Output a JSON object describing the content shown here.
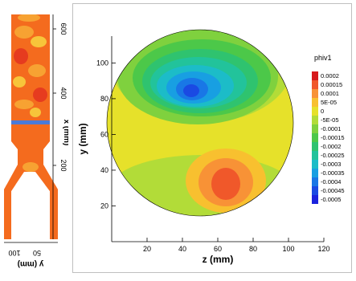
{
  "chart_data": [
    {
      "type": "heatmap",
      "title": "",
      "xlabel": "x (mm)",
      "ylabel": "y (mm)",
      "xticks": [
        "200",
        "400",
        "600"
      ],
      "yticks": [
        "50",
        "100"
      ],
      "xlim": [
        100,
        600
      ],
      "ylim": [
        50,
        100
      ],
      "grid": false,
      "description_colors": {
        "background": "#f46b1e",
        "hot": "#e63b1f",
        "cool": "#f7c53a",
        "marker": "#4a7ad8"
      }
    },
    {
      "type": "heatmap",
      "title": "",
      "xlabel": "z (mm)",
      "ylabel": "y (mm)",
      "xticks": [
        "20",
        "40",
        "60",
        "80",
        "100",
        "120"
      ],
      "yticks": [
        "20",
        "40",
        "60",
        "80",
        "100"
      ],
      "xlim": [
        0,
        120
      ],
      "ylim": [
        0,
        115
      ],
      "grid": false,
      "legend_position": "right",
      "colorbar": {
        "title": "phiv1",
        "levels": [
          "0.0002",
          "0.00015",
          "0.0001",
          "5E-05",
          "0",
          "-5E-05",
          "-0.0001",
          "-0.00015",
          "-0.0002",
          "-0.00025",
          "-0.0003",
          "-0.00035",
          "-0.0004",
          "-0.00045",
          "-0.0005"
        ],
        "colors": [
          "#d7191c",
          "#f0582a",
          "#f89236",
          "#f8c02f",
          "#e6e12a",
          "#b2dc38",
          "#7fd13e",
          "#4cc849",
          "#2fc36f",
          "#22c39b",
          "#1cbcc8",
          "#189fe2",
          "#1977e6",
          "#1a4ae3",
          "#1b22dd"
        ]
      },
      "regions": [
        {
          "label": "negative lobe",
          "center_z": 52,
          "center_y": 76,
          "min_value": "-0.0005"
        },
        {
          "label": "positive lobe",
          "center_z": 67,
          "center_y": 35,
          "max_value": "0.00015"
        }
      ]
    }
  ]
}
